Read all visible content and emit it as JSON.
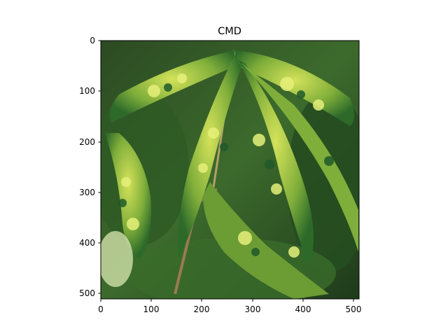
{
  "figure": {
    "title": "CMD"
  },
  "image": {
    "subject": "close-up photo of cassava leaves with yellow-green mosaic pattern",
    "colors": {
      "dark_leaf": "#1f5a2a",
      "mid_leaf": "#3f8a2c",
      "mosaic_yellow": "#c9d84a",
      "highlight": "#e6f07a",
      "shadow": "#16301a",
      "stem": "#9c7a52"
    }
  },
  "axes": {
    "x_ticks": [
      "0",
      "100",
      "200",
      "300",
      "400",
      "500"
    ],
    "y_ticks": [
      "0",
      "100",
      "200",
      "300",
      "400",
      "500"
    ]
  }
}
